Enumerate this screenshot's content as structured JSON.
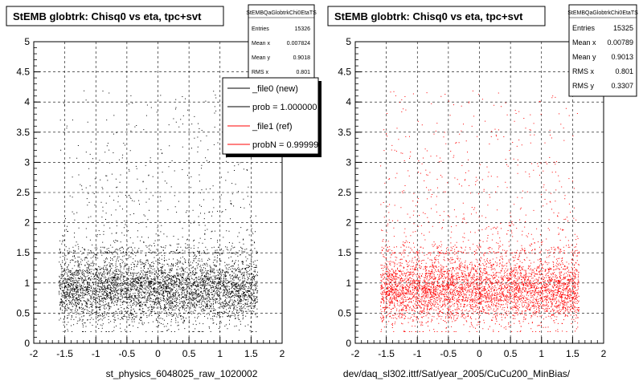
{
  "panels": [
    {
      "id": "left",
      "title": "StEMB globtrk: Chisq0 vs eta, tpc+svt",
      "xlabel": "st_physics_6048025_raw_1020002",
      "point_color": "#000000",
      "stats": {
        "name": "StEMBQaGlobtrkChi0EtaTS",
        "rows": [
          {
            "label": "Entries",
            "value": "15326"
          },
          {
            "label": "Mean x",
            "value": "0.007824"
          },
          {
            "label": "Mean y",
            "value": "0.9018"
          },
          {
            "label": "RMS x",
            "value": "0.801"
          }
        ]
      },
      "legend": [
        {
          "label": "_file0 (new)",
          "color": "#000000"
        },
        {
          "label": "prob = 1.000000",
          "color": "#000000"
        },
        {
          "label": "_file1 (ref)",
          "color": "#ff0000"
        },
        {
          "label": "probN = 0.999999",
          "color": "#ff0000"
        }
      ]
    },
    {
      "id": "right",
      "title": "StEMB globtrk: Chisq0 vs eta, tpc+svt",
      "xlabel": "dev/daq_sl302.ittf/Sat/year_2005/CuCu200_MinBias/",
      "point_color": "#ff0000",
      "stats": {
        "name": "StEMBQaGlobtrkChi0EtaTS",
        "rows": [
          {
            "label": "Entries",
            "value": "15325"
          },
          {
            "label": "Mean x",
            "value": "0.00789"
          },
          {
            "label": "Mean y",
            "value": "0.9013"
          },
          {
            "label": "RMS x",
            "value": "0.801"
          },
          {
            "label": "RMS y",
            "value": "0.3307"
          }
        ]
      }
    }
  ],
  "chart_data": [
    {
      "type": "scatter",
      "title": "StEMB globtrk: Chisq0 vs eta, tpc+svt",
      "xlabel": "st_physics_6048025_raw_1020002",
      "ylabel": "",
      "xlim": [
        -2,
        2
      ],
      "ylim": [
        0,
        5
      ],
      "xticks": [
        "-2",
        "-1.5",
        "-1",
        "-0.5",
        "0",
        "0.5",
        "1",
        "1.5",
        "2"
      ],
      "yticks": [
        "0",
        "0.5",
        "1",
        "1.5",
        "2",
        "2.5",
        "3",
        "3.5",
        "4",
        "4.5",
        "5"
      ],
      "grid": true,
      "distribution": {
        "entries": 15326,
        "mean_x": 0.007824,
        "mean_y": 0.9018,
        "rms_x": 0.801,
        "eta_range": [
          -1.6,
          1.6
        ],
        "core_y_range": [
          0.2,
          1.6
        ],
        "tail_y_max": 4.2
      },
      "series": [
        {
          "name": "_file0 (new)",
          "color": "#000000"
        }
      ]
    },
    {
      "type": "scatter",
      "title": "StEMB globtrk: Chisq0 vs eta, tpc+svt",
      "xlabel": "dev/daq_sl302.ittf/Sat/year_2005/CuCu200_MinBias/",
      "ylabel": "",
      "xlim": [
        -2,
        2
      ],
      "ylim": [
        0,
        5
      ],
      "xticks": [
        "-2",
        "-1.5",
        "-1",
        "-0.5",
        "0",
        "0.5",
        "1",
        "1.5",
        "2"
      ],
      "yticks": [
        "0",
        "0.5",
        "1",
        "1.5",
        "2",
        "2.5",
        "3",
        "3.5",
        "4",
        "4.5",
        "5"
      ],
      "grid": true,
      "distribution": {
        "entries": 15325,
        "mean_x": 0.00789,
        "mean_y": 0.9013,
        "rms_x": 0.801,
        "rms_y": 0.3307,
        "eta_range": [
          -1.6,
          1.6
        ],
        "core_y_range": [
          0.2,
          1.6
        ],
        "tail_y_max": 4.2
      },
      "series": [
        {
          "name": "_file1 (ref)",
          "color": "#ff0000"
        }
      ]
    }
  ]
}
